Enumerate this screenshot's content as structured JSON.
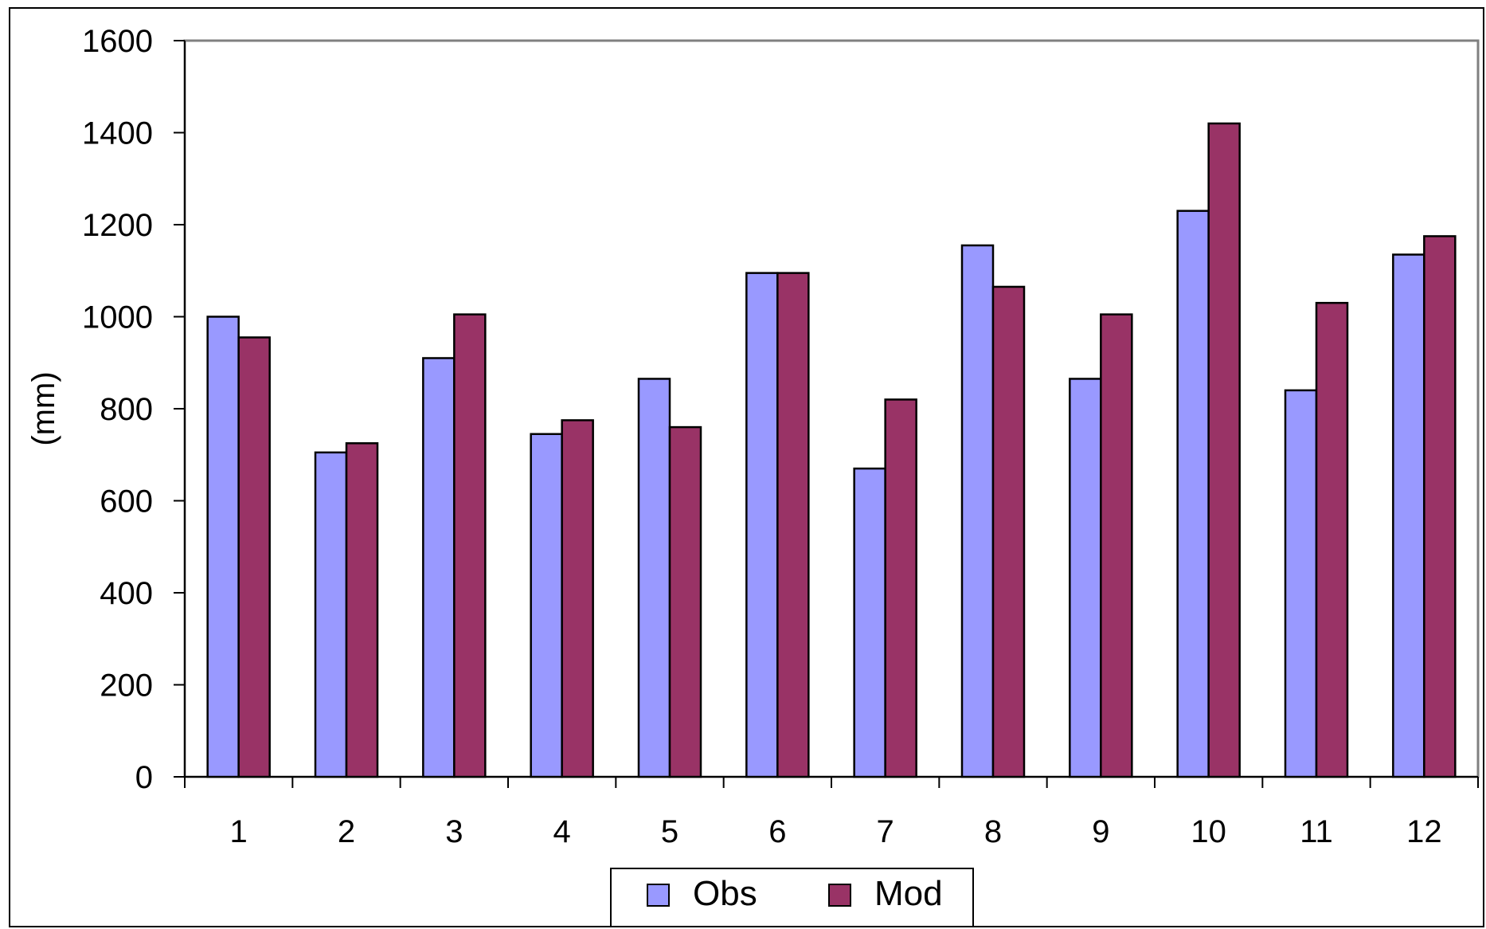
{
  "chart_data": {
    "type": "bar",
    "title": "",
    "xlabel": "",
    "ylabel": "(mm)",
    "categories": [
      "1",
      "2",
      "3",
      "4",
      "5",
      "6",
      "7",
      "8",
      "9",
      "10",
      "11",
      "12"
    ],
    "series": [
      {
        "name": "Obs",
        "color": "#9999ff",
        "values": [
          1000,
          705,
          910,
          745,
          865,
          1095,
          670,
          1155,
          865,
          1230,
          840,
          1135
        ]
      },
      {
        "name": "Mod",
        "color": "#993366",
        "values": [
          955,
          725,
          1005,
          775,
          760,
          1095,
          820,
          1065,
          1005,
          1420,
          1030,
          1175
        ]
      }
    ],
    "ylim": [
      0,
      1600
    ],
    "yticks": [
      0,
      200,
      400,
      600,
      800,
      1000,
      1200,
      1400,
      1600
    ],
    "grid": false,
    "legend": "bottom-center"
  }
}
